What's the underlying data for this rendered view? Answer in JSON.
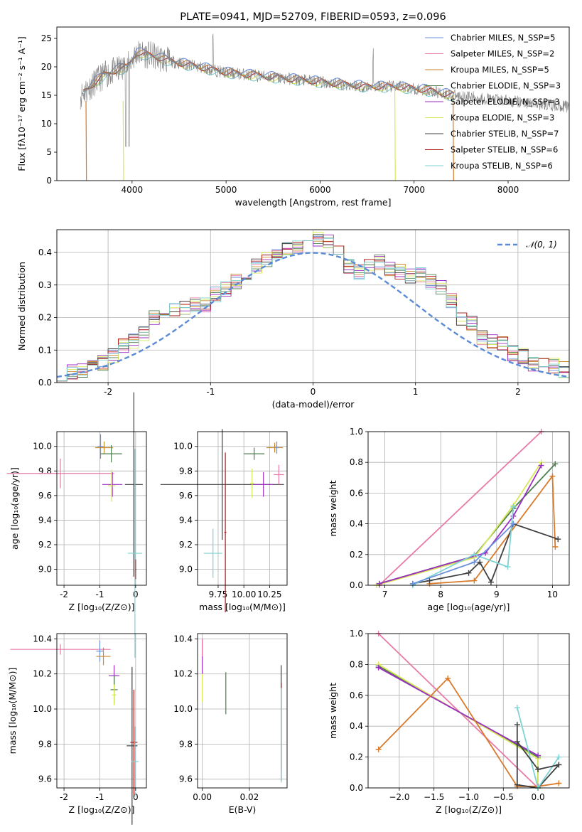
{
  "colors": {
    "chabrier_miles": "#6a8fdc",
    "salpeter_miles": "#e87aa8",
    "kroupa_miles": "#c88a2a",
    "chabrier_elodie": "#4f7f4f",
    "salpeter_elodie": "#9a2fbf",
    "kroupa_elodie": "#d8e85a",
    "chabrier_stelib": "#404040",
    "salpeter_stelib": "#b01818",
    "kroupa_stelib": "#7fd3d3",
    "normal_curve": "#5b8bd6",
    "orange": "#d87a2a",
    "pink": "#e47eb4",
    "grid": "#b0b0b0"
  },
  "chart_data": [
    {
      "id": "spectrum",
      "type": "line",
      "title": "PLATE=0941, MJD=52709, FIBERID=0593, z=0.096",
      "xlabel": "wavelength [Angstrom, rest frame]",
      "ylabel": "Flux [fλ10⁻¹⁷ erg cm⁻² s⁻¹ A⁻¹]",
      "xlim": [
        3200,
        8650
      ],
      "ylim": [
        0,
        27
      ],
      "xticks": [
        4000,
        5000,
        6000,
        7000,
        8000
      ],
      "yticks": [
        0,
        5,
        10,
        15,
        20,
        25
      ],
      "legend_position": "upper right",
      "legend": [
        "Chabrier MILES, N_SSP=5",
        "Salpeter MILES, N_SSP=2",
        "Kroupa MILES, N_SSP=5",
        "Chabrier ELODIE, N_SSP=3",
        "Salpeter ELODIE, N_SSP=3",
        "Kroupa ELODIE, N_SSP=3",
        "Chabrier STELIB, N_SSP=7",
        "Salpeter STELIB, N_SSP=6",
        "Kroupa STELIB, N_SSP=6"
      ],
      "data_envelope": {
        "x": [
          3450,
          3550,
          3700,
          3850,
          3950,
          4050,
          4200,
          4400,
          4700,
          5000,
          5300,
          5600,
          5900,
          6200,
          6500,
          6800,
          7100,
          7400,
          7700,
          8000,
          8300,
          8650
        ],
        "y": [
          15,
          16.5,
          18.5,
          19.5,
          20,
          22.5,
          22,
          21,
          20,
          19,
          18.5,
          18,
          17.5,
          17,
          16.5,
          16.5,
          16,
          15,
          14.5,
          14,
          13.5,
          13
        ]
      }
    },
    {
      "id": "residual-histogram",
      "type": "line",
      "xlabel": "(data-model)/error",
      "ylabel": "Normed distribution",
      "xlim": [
        -2.5,
        2.5
      ],
      "ylim": [
        0,
        0.47
      ],
      "xticks": [
        -2,
        -1,
        0,
        1,
        2
      ],
      "yticks": [
        0.0,
        0.1,
        0.2,
        0.3,
        0.4
      ],
      "legend": [
        "𝒩(0, 1)"
      ],
      "legend_position": "upper right",
      "histogram": {
        "bin_width": 0.1,
        "x_start": -2.5,
        "values": [
          0.03,
          0.03,
          0.04,
          0.05,
          0.06,
          0.08,
          0.11,
          0.13,
          0.15,
          0.2,
          0.22,
          0.22,
          0.23,
          0.24,
          0.24,
          0.27,
          0.29,
          0.31,
          0.33,
          0.36,
          0.38,
          0.4,
          0.41,
          0.42,
          0.43,
          0.44,
          0.43,
          0.4,
          0.36,
          0.34,
          0.36,
          0.37,
          0.35,
          0.34,
          0.33,
          0.33,
          0.31,
          0.29,
          0.25,
          0.2,
          0.18,
          0.14,
          0.13,
          0.12,
          0.09,
          0.08,
          0.06,
          0.05,
          0.05,
          0.04
        ]
      }
    },
    {
      "id": "age-vs-Z",
      "type": "scatter",
      "xlabel": "Z [log₁₀(Z/Z⊙)]",
      "ylabel": "age  [log₁₀(age/yr)]",
      "xlim": [
        -2.2,
        0.3
      ],
      "ylim": [
        8.87,
        10.12
      ],
      "xticks": [
        -2,
        -1,
        0
      ],
      "yticks": [
        9.0,
        9.2,
        9.4,
        9.6,
        9.8,
        10.0
      ],
      "points": [
        {
          "series": "chabrier_miles",
          "x": -0.98,
          "y": 10.0,
          "xerr": 0.08,
          "yerr": 0.1
        },
        {
          "series": "salpeter_miles",
          "x": -2.1,
          "y": 9.78,
          "xerr": 1.5,
          "yerr": 0.12
        },
        {
          "series": "kroupa_miles",
          "x": -0.88,
          "y": 9.99,
          "xerr": 0.25,
          "yerr": 0.05
        },
        {
          "series": "chabrier_elodie",
          "x": -0.68,
          "y": 9.94,
          "xerr": 0.3,
          "yerr": 0.07
        },
        {
          "series": "salpeter_elodie",
          "x": -0.65,
          "y": 9.69,
          "xerr": 0.28,
          "yerr": 0.1
        },
        {
          "series": "kroupa_elodie",
          "x": -0.67,
          "y": 9.68,
          "xerr": 0.1,
          "yerr": 0.13
        },
        {
          "series": "chabrier_stelib",
          "x": -0.05,
          "y": 9.69,
          "xerr": 0.25,
          "yerr": 0.75
        },
        {
          "series": "salpeter_stelib",
          "x": 0.0,
          "y": 9.0,
          "xerr": 0.02,
          "yerr": 0.08
        },
        {
          "series": "kroupa_stelib",
          "x": -0.02,
          "y": 9.13,
          "xerr": 0.2,
          "yerr": 0.85
        }
      ]
    },
    {
      "id": "age-vs-mass",
      "type": "scatter",
      "xlabel": "mass [log₁₀(M/M⊙)]",
      "ylabel": "",
      "xlim": [
        9.55,
        10.42
      ],
      "ylim": [
        8.87,
        10.12
      ],
      "xticks": [
        9.75,
        10.0,
        10.25
      ],
      "xticklabels": [
        "9.75",
        "10.00",
        "10.25"
      ],
      "yticks": [
        9.0,
        9.2,
        9.4,
        9.6,
        9.8,
        10.0
      ],
      "points": [
        {
          "series": "chabrier_stelib",
          "x": 9.79,
          "y": 9.69,
          "xerr": 0.6,
          "yerr": 0.45
        },
        {
          "series": "salpeter_stelib",
          "x": 9.82,
          "y": 9.3,
          "xerr": 0.01,
          "yerr": 0.65
        },
        {
          "series": "kroupa_stelib",
          "x": 9.7,
          "y": 9.13,
          "xerr": 0.09,
          "yerr": 0.2
        },
        {
          "series": "chabrier_elodie",
          "x": 10.1,
          "y": 9.94,
          "xerr": 0.1,
          "yerr": 0.05
        },
        {
          "series": "kroupa_elodie",
          "x": 10.08,
          "y": 9.7,
          "xerr": 0.02,
          "yerr": 0.12
        },
        {
          "series": "salpeter_elodie",
          "x": 10.19,
          "y": 9.69,
          "xerr": 0.1,
          "yerr": 0.1
        },
        {
          "series": "kroupa_miles",
          "x": 10.3,
          "y": 9.99,
          "xerr": 0.08,
          "yerr": 0.04
        },
        {
          "series": "chabrier_miles",
          "x": 10.32,
          "y": 9.99,
          "xerr": 0.02,
          "yerr": 0.05
        },
        {
          "series": "salpeter_miles",
          "x": 10.34,
          "y": 9.77,
          "xerr": 0.05,
          "yerr": 0.08
        }
      ]
    },
    {
      "id": "mass-weight-vs-age",
      "type": "line",
      "xlabel": "age  [log₁₀(age/yr)]",
      "ylabel": "mass weight",
      "xlim": [
        6.7,
        10.3
      ],
      "ylim": [
        0,
        1.0
      ],
      "xticks": [
        7,
        8,
        9,
        10
      ],
      "yticks": [
        0.0,
        0.2,
        0.4,
        0.6,
        0.8,
        1.0
      ],
      "series": [
        {
          "color": "salpeter_miles",
          "x": [
            6.9,
            9.8
          ],
          "y": [
            0.0,
            1.0
          ]
        },
        {
          "color": "chabrier_elodie",
          "x": [
            6.9,
            8.6,
            9.3,
            10.05
          ],
          "y": [
            0.01,
            0.19,
            0.5,
            0.79
          ]
        },
        {
          "color": "kroupa_elodie",
          "x": [
            6.85,
            8.6,
            9.3,
            9.8
          ],
          "y": [
            0.0,
            0.18,
            0.52,
            0.8
          ]
        },
        {
          "color": "salpeter_elodie",
          "x": [
            6.9,
            8.8,
            9.3,
            9.8
          ],
          "y": [
            0.01,
            0.21,
            0.45,
            0.78
          ]
        },
        {
          "color": "orange",
          "x": [
            7.8,
            8.6,
            10.0,
            10.05
          ],
          "y": [
            0.01,
            0.03,
            0.71,
            0.25
          ]
        },
        {
          "color": "chabrier_stelib",
          "x": [
            7.5,
            7.8,
            8.5,
            8.7,
            8.9,
            9.3,
            10.1
          ],
          "y": [
            0.01,
            0.03,
            0.08,
            0.15,
            0.02,
            0.4,
            0.3
          ]
        },
        {
          "color": "kroupa_stelib",
          "x": [
            7.5,
            8.6,
            9.2,
            9.3
          ],
          "y": [
            0.0,
            0.2,
            0.12,
            0.51
          ]
        },
        {
          "color": "chabrier_miles",
          "x": [
            7.5,
            8.6,
            9.3
          ],
          "y": [
            0.01,
            0.15,
            0.4
          ]
        }
      ]
    },
    {
      "id": "mass-vs-Z",
      "type": "scatter",
      "xlabel": "Z [log₁₀(Z/Z⊙)]",
      "ylabel": "mass [log₁₀(M/M⊙)]",
      "xlim": [
        -2.2,
        0.3
      ],
      "ylim": [
        9.55,
        10.43
      ],
      "xticks": [
        -2,
        -1,
        0
      ],
      "yticks": [
        9.6,
        9.8,
        10.0,
        10.2,
        10.4
      ],
      "points": [
        {
          "series": "salpeter_miles",
          "x": -2.1,
          "y": 10.34,
          "xerr": 1.4,
          "yerr": 0.03
        },
        {
          "series": "chabrier_miles",
          "x": -1.0,
          "y": 10.33,
          "xerr": 0.1,
          "yerr": 0.06
        },
        {
          "series": "kroupa_miles",
          "x": -0.9,
          "y": 10.3,
          "xerr": 0.2,
          "yerr": 0.05
        },
        {
          "series": "salpeter_elodie",
          "x": -0.6,
          "y": 10.19,
          "xerr": 0.15,
          "yerr": 0.06
        },
        {
          "series": "chabrier_elodie",
          "x": -0.6,
          "y": 10.11,
          "xerr": 0.1,
          "yerr": 0.08
        },
        {
          "series": "kroupa_elodie",
          "x": -0.6,
          "y": 10.08,
          "xerr": 0.06,
          "yerr": 0.06
        },
        {
          "series": "salpeter_stelib",
          "x": -0.05,
          "y": 9.81,
          "xerr": 0.1,
          "yerr": 0.3
        },
        {
          "series": "chabrier_stelib",
          "x": -0.1,
          "y": 9.79,
          "xerr": 0.15,
          "yerr": 0.45
        },
        {
          "series": "kroupa_stelib",
          "x": -0.02,
          "y": 9.7,
          "xerr": 0.1,
          "yerr": 0.2
        }
      ]
    },
    {
      "id": "mass-vs-EBV",
      "type": "scatter",
      "xlabel": "E(B-V)",
      "ylabel": "",
      "xlim": [
        -0.002,
        0.036
      ],
      "ylim": [
        9.55,
        10.43
      ],
      "xticks": [
        0.0,
        0.02
      ],
      "xticklabels": [
        "0.00",
        "0.02"
      ],
      "yticks": [
        9.6,
        9.8,
        10.0,
        10.2,
        10.4
      ],
      "points": [
        {
          "series": "salpeter_elodie",
          "x": 0.0,
          "y": 10.3,
          "xerr": 0.0,
          "yerr": 0.1
        },
        {
          "series": "salpeter_miles",
          "x": 0.0,
          "y": 10.35,
          "xerr": 0.0,
          "yerr": 0.05
        },
        {
          "series": "kroupa_elodie",
          "x": 0.0,
          "y": 10.12,
          "xerr": 0.0,
          "yerr": 0.08
        },
        {
          "series": "chabrier_elodie",
          "x": 0.01,
          "y": 10.09,
          "xerr": 0.0,
          "yerr": 0.12
        },
        {
          "series": "chabrier_stelib",
          "x": 0.0335,
          "y": 9.92,
          "xerr": 0.0,
          "yerr": 0.33
        },
        {
          "series": "salpeter_stelib",
          "x": 0.0335,
          "y": 9.9,
          "xerr": 0.0,
          "yerr": 0.25
        },
        {
          "series": "kroupa_stelib",
          "x": 0.0335,
          "y": 9.85,
          "xerr": 0.0,
          "yerr": 0.27
        }
      ]
    },
    {
      "id": "mass-weight-vs-Z",
      "type": "line",
      "xlabel": "Z [log₁₀(Z/Z⊙)]",
      "ylabel": "mass weight",
      "xlim": [
        -2.45,
        0.45
      ],
      "ylim": [
        0,
        1.0
      ],
      "xticks": [
        -2.0,
        -1.5,
        -1.0,
        -0.5,
        0.0
      ],
      "xticklabels": [
        "−2.0",
        "−1.5",
        "−1.0",
        "−0.5",
        "0.0"
      ],
      "yticks": [
        0.0,
        0.2,
        0.4,
        0.6,
        0.8,
        1.0
      ],
      "series": [
        {
          "color": "salpeter_miles",
          "x": [
            -2.3,
            0.0
          ],
          "y": [
            1.0,
            0.0
          ]
        },
        {
          "color": "chabrier_elodie",
          "x": [
            -2.3,
            0.0,
            0.0
          ],
          "y": [
            0.79,
            0.2,
            0.0
          ]
        },
        {
          "color": "kroupa_elodie",
          "x": [
            -2.3,
            0.0,
            0.0
          ],
          "y": [
            0.8,
            0.19,
            0.0
          ]
        },
        {
          "color": "salpeter_elodie",
          "x": [
            -2.3,
            0.0
          ],
          "y": [
            0.78,
            0.21
          ]
        },
        {
          "color": "orange",
          "x": [
            -2.3,
            -1.3,
            -0.3,
            0.0,
            0.3
          ],
          "y": [
            0.25,
            0.71,
            0.01,
            0.01,
            0.03
          ]
        },
        {
          "color": "chabrier_stelib",
          "x": [
            -0.3,
            -0.3,
            0.0,
            0.3
          ],
          "y": [
            0.41,
            0.02,
            0.0,
            0.15
          ]
        },
        {
          "color": "kroupa_stelib",
          "x": [
            -0.3,
            0.0,
            0.3
          ],
          "y": [
            0.52,
            0.0,
            0.2
          ]
        },
        {
          "color": "chabrier_stelib",
          "x": [
            -0.3,
            0.0,
            0.3
          ],
          "y": [
            0.3,
            0.12,
            0.15
          ]
        }
      ]
    }
  ]
}
